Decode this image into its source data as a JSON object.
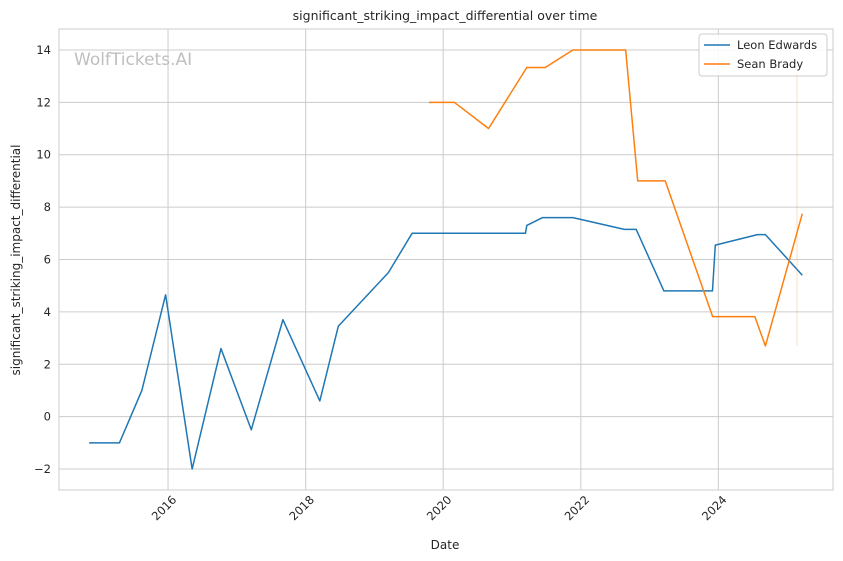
{
  "chart_data": {
    "type": "line",
    "title": "significant_striking_impact_differential over time",
    "xlabel": "Date",
    "ylabel": "significant_striking_impact_differential",
    "watermark": "WolfTickets.AI",
    "xlim": [
      "2014-06-01",
      "2025-09-01"
    ],
    "ylim": [
      -2.8,
      14.8
    ],
    "x_ticks": [
      {
        "date": "2016-01-01",
        "label": "2016"
      },
      {
        "date": "2018-01-01",
        "label": "2018"
      },
      {
        "date": "2020-01-01",
        "label": "2020"
      },
      {
        "date": "2022-01-01",
        "label": "2022"
      },
      {
        "date": "2024-01-01",
        "label": "2024"
      }
    ],
    "y_ticks": [
      {
        "value": -2,
        "label": "−2"
      },
      {
        "value": 0,
        "label": "0"
      },
      {
        "value": 2,
        "label": "2"
      },
      {
        "value": 4,
        "label": "4"
      },
      {
        "value": 6,
        "label": "6"
      },
      {
        "value": 8,
        "label": "8"
      },
      {
        "value": 10,
        "label": "10"
      },
      {
        "value": 12,
        "label": "12"
      },
      {
        "value": 14,
        "label": "14"
      }
    ],
    "grid": true,
    "legend_position": "top-right",
    "series": [
      {
        "name": "Leon Edwards",
        "color": "#1f77b4",
        "points": [
          {
            "x": "2014-11-08",
            "y": -1.0
          },
          {
            "x": "2015-04-18",
            "y": -1.0
          },
          {
            "x": "2015-08-15",
            "y": 1.0
          },
          {
            "x": "2015-12-19",
            "y": 4.65
          },
          {
            "x": "2016-05-08",
            "y": -2.0
          },
          {
            "x": "2016-10-08",
            "y": 2.6
          },
          {
            "x": "2017-03-18",
            "y": -0.5
          },
          {
            "x": "2017-09-02",
            "y": 3.7
          },
          {
            "x": "2018-03-17",
            "y": 0.6
          },
          {
            "x": "2018-06-23",
            "y": 3.45
          },
          {
            "x": "2019-03-16",
            "y": 5.5
          },
          {
            "x": "2019-07-20",
            "y": 7.0
          },
          {
            "x": "2021-03-13",
            "y": 7.0
          },
          {
            "x": "2021-03-20",
            "y": 7.3
          },
          {
            "x": "2021-06-12",
            "y": 7.6
          },
          {
            "x": "2021-11-20",
            "y": 7.6
          },
          {
            "x": "2022-08-20",
            "y": 7.15
          },
          {
            "x": "2022-10-22",
            "y": 7.15
          },
          {
            "x": "2023-03-18",
            "y": 4.8
          },
          {
            "x": "2023-12-01",
            "y": 4.8
          },
          {
            "x": "2023-12-16",
            "y": 6.55
          },
          {
            "x": "2024-07-27",
            "y": 6.95
          },
          {
            "x": "2024-09-07",
            "y": 6.95
          },
          {
            "x": "2025-03-22",
            "y": 5.4
          }
        ]
      },
      {
        "name": "Sean Brady",
        "color": "#ff7f0e",
        "points": [
          {
            "x": "2019-10-18",
            "y": 12.0
          },
          {
            "x": "2020-02-29",
            "y": 12.0
          },
          {
            "x": "2020-08-29",
            "y": 11.0
          },
          {
            "x": "2021-03-20",
            "y": 13.33
          },
          {
            "x": "2021-06-26",
            "y": 13.33
          },
          {
            "x": "2021-11-20",
            "y": 14.0
          },
          {
            "x": "2022-08-27",
            "y": 14.0
          },
          {
            "x": "2022-10-30",
            "y": 9.0
          },
          {
            "x": "2023-03-25",
            "y": 9.0
          },
          {
            "x": "2023-12-02",
            "y": 3.82
          },
          {
            "x": "2024-07-13",
            "y": 3.82
          },
          {
            "x": "2024-09-07",
            "y": 2.7
          },
          {
            "x": "2025-03-22",
            "y": 7.75
          }
        ]
      }
    ]
  }
}
